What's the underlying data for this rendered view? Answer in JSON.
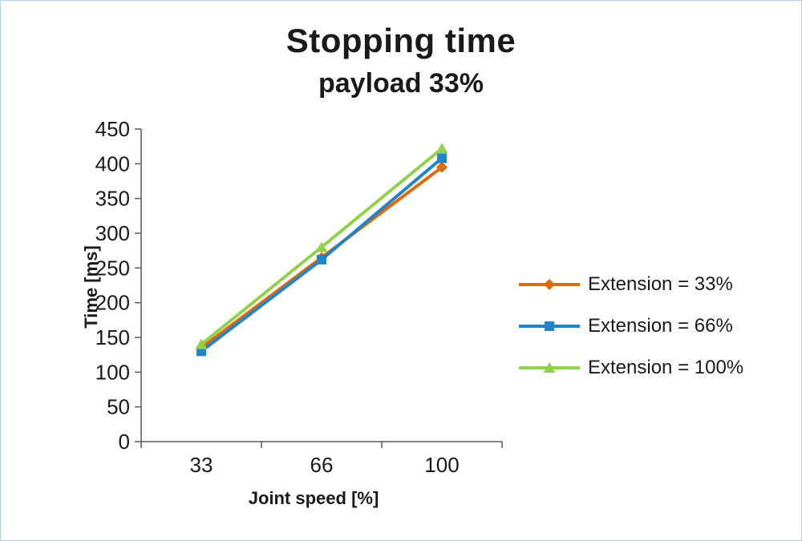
{
  "title": "Stopping time",
  "subtitle": "payload 33%",
  "chart_data": {
    "type": "line",
    "title": "Stopping time",
    "subtitle": "payload 33%",
    "xlabel": "Joint speed [%]",
    "ylabel": "Time [ms]",
    "categories": [
      33,
      66,
      100
    ],
    "series": [
      {
        "name": "Extension = 33%",
        "values": [
          135,
          265,
          395
        ],
        "color": "#E16B0C",
        "marker": "diamond"
      },
      {
        "name": "Extension = 66%",
        "values": [
          130,
          262,
          408
        ],
        "color": "#2283C5",
        "marker": "square"
      },
      {
        "name": "Extension = 100%",
        "values": [
          140,
          280,
          422
        ],
        "color": "#92D050",
        "marker": "triangle"
      }
    ],
    "ylim": [
      0,
      450
    ],
    "ytick_step": 50,
    "grid": false,
    "legend_position": "right"
  },
  "colors": {
    "axis": "#595959",
    "text": "#1a1a1a",
    "border": "#b8cce4"
  }
}
